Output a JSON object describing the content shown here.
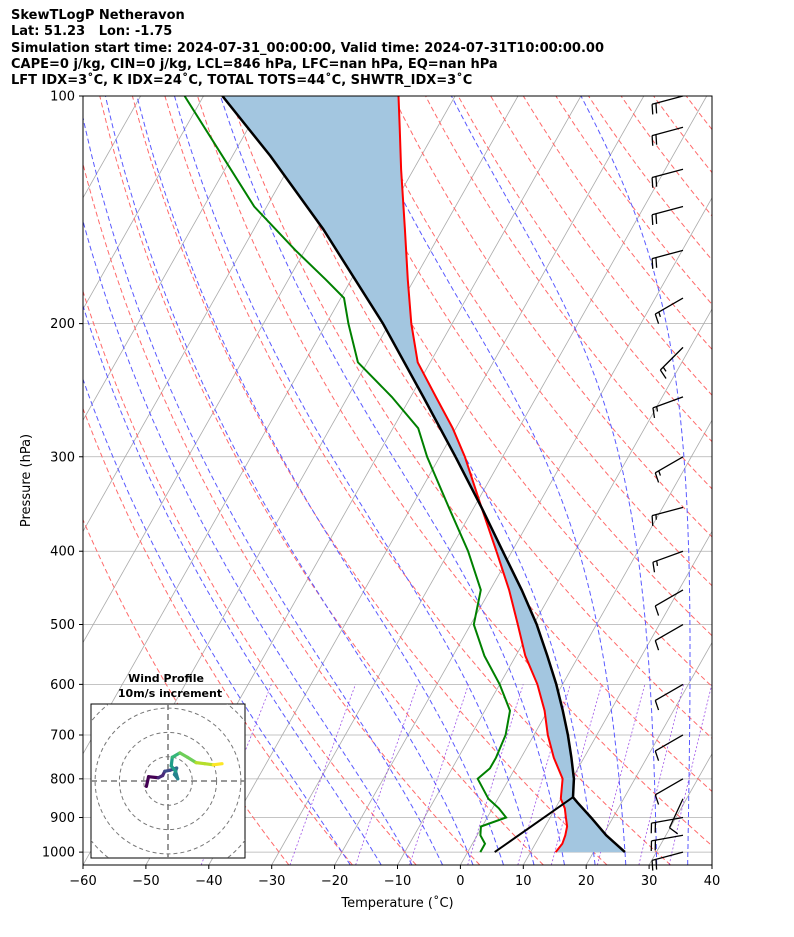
{
  "header": {
    "line1": "SkewTLogP Netheravon",
    "line2": "Lat: 51.23   Lon: -1.75",
    "line3": "Simulation start time: 2024-07-31_00:00:00, Valid time: 2024-07-31T10:00:00.00",
    "line4": "CAPE=0 j/kg, CIN=0 j/kg, LCL=846 hPa, LFC=nan hPa, EQ=nan hPa",
    "line5": "LFT IDX=3˚C, K IDX=24˚C, TOTAL TOTS=44˚C, SHWTR_IDX=3˚C"
  },
  "colors": {
    "temperature": "#ff0000",
    "dewpoint": "#008000",
    "parcel": "#000000",
    "cape_fill": "#a3c6e0",
    "isotherm": "#aaaaaa",
    "dry_adiabat": "#ff6a6a",
    "moist_adiabat": "#5a5aff",
    "mixing_ratio": "#8a2be2"
  },
  "chart_data": {
    "type": "line",
    "subtype": "skew-t log-p",
    "xlabel": "Temperature (˚C)",
    "ylabel": "Pressure (hPa)",
    "xlim": [
      -60,
      40
    ],
    "ylim": [
      1040,
      100
    ],
    "yscale": "log",
    "x_ticks": [
      "−60",
      "−50",
      "−40",
      "−30",
      "−20",
      "−10",
      "0",
      "10",
      "20",
      "30",
      "40"
    ],
    "y_ticks": [
      {
        "p": 100,
        "label": "100"
      },
      {
        "p": 200,
        "label": "200"
      },
      {
        "p": 300,
        "label": "300"
      },
      {
        "p": 400,
        "label": "400"
      },
      {
        "p": 500,
        "label": "500"
      },
      {
        "p": 600,
        "label": "600"
      },
      {
        "p": 700,
        "label": "700"
      },
      {
        "p": 800,
        "label": "800"
      },
      {
        "p": 900,
        "label": "900"
      },
      {
        "p": 1000,
        "label": "1000"
      }
    ],
    "temperature": [
      [
        1000,
        14
      ],
      [
        975,
        14.3
      ],
      [
        950,
        14
      ],
      [
        925,
        13.5
      ],
      [
        900,
        12.5
      ],
      [
        875,
        11.5
      ],
      [
        850,
        10
      ],
      [
        800,
        8.5
      ],
      [
        750,
        5.2
      ],
      [
        700,
        2.2
      ],
      [
        650,
        -0.5
      ],
      [
        600,
        -4
      ],
      [
        550,
        -8.5
      ],
      [
        500,
        -12.5
      ],
      [
        450,
        -17
      ],
      [
        400,
        -22.5
      ],
      [
        350,
        -28.8
      ],
      [
        300,
        -36
      ],
      [
        275,
        -40.5
      ],
      [
        250,
        -46
      ],
      [
        225,
        -52
      ],
      [
        200,
        -56.5
      ],
      [
        175,
        -61
      ],
      [
        150,
        -66
      ],
      [
        125,
        -72
      ],
      [
        110,
        -76
      ],
      [
        100,
        -79
      ]
    ],
    "dewpoint": [
      [
        1000,
        2
      ],
      [
        975,
        2
      ],
      [
        950,
        0.5
      ],
      [
        925,
        -0.2
      ],
      [
        900,
        3
      ],
      [
        875,
        1
      ],
      [
        850,
        -1.5
      ],
      [
        800,
        -5
      ],
      [
        775,
        -4
      ],
      [
        750,
        -4
      ],
      [
        700,
        -4.5
      ],
      [
        650,
        -6
      ],
      [
        600,
        -10
      ],
      [
        550,
        -15
      ],
      [
        500,
        -19.5
      ],
      [
        450,
        -21.5
      ],
      [
        400,
        -27
      ],
      [
        350,
        -34
      ],
      [
        300,
        -42
      ],
      [
        275,
        -46
      ],
      [
        250,
        -53
      ],
      [
        225,
        -61.5
      ],
      [
        200,
        -66.5
      ],
      [
        185,
        -69.5
      ],
      [
        175,
        -74
      ],
      [
        160,
        -81.5
      ],
      [
        140,
        -92
      ],
      [
        100,
        -113
      ]
    ],
    "parcel": [
      [
        1000,
        25
      ],
      [
        950,
        20.5
      ],
      [
        900,
        16.5
      ],
      [
        860,
        13
      ],
      [
        846,
        11.8
      ],
      [
        800,
        10.3
      ],
      [
        750,
        8
      ],
      [
        700,
        5.4
      ],
      [
        650,
        2.4
      ],
      [
        600,
        -1
      ],
      [
        550,
        -5
      ],
      [
        500,
        -9.5
      ],
      [
        450,
        -15
      ],
      [
        400,
        -21.5
      ],
      [
        350,
        -28.8
      ],
      [
        300,
        -37.5
      ],
      [
        250,
        -48
      ],
      [
        200,
        -61
      ],
      [
        150,
        -79
      ],
      [
        120,
        -94
      ],
      [
        100,
        -107
      ]
    ],
    "parcel_surface_segment": [
      [
        1000,
        4.3
      ],
      [
        846,
        11.8
      ]
    ],
    "wind_barbs": [
      {
        "p": 100,
        "dir_deg": 255,
        "speed_kt": 20
      },
      {
        "p": 110,
        "dir_deg": 255,
        "speed_kt": 20
      },
      {
        "p": 125,
        "dir_deg": 255,
        "speed_kt": 20
      },
      {
        "p": 140,
        "dir_deg": 255,
        "speed_kt": 20
      },
      {
        "p": 160,
        "dir_deg": 255,
        "speed_kt": 20
      },
      {
        "p": 185,
        "dir_deg": 240,
        "speed_kt": 15
      },
      {
        "p": 215,
        "dir_deg": 225,
        "speed_kt": 15
      },
      {
        "p": 250,
        "dir_deg": 250,
        "speed_kt": 15
      },
      {
        "p": 300,
        "dir_deg": 240,
        "speed_kt": 15
      },
      {
        "p": 350,
        "dir_deg": 255,
        "speed_kt": 15
      },
      {
        "p": 400,
        "dir_deg": 250,
        "speed_kt": 15
      },
      {
        "p": 450,
        "dir_deg": 240,
        "speed_kt": 10
      },
      {
        "p": 500,
        "dir_deg": 240,
        "speed_kt": 10
      },
      {
        "p": 600,
        "dir_deg": 240,
        "speed_kt": 10
      },
      {
        "p": 700,
        "dir_deg": 240,
        "speed_kt": 10
      },
      {
        "p": 800,
        "dir_deg": 240,
        "speed_kt": 10
      },
      {
        "p": 850,
        "dir_deg": 205,
        "speed_kt": 10
      },
      {
        "p": 900,
        "dir_deg": 260,
        "speed_kt": 20
      },
      {
        "p": 950,
        "dir_deg": 260,
        "speed_kt": 20
      },
      {
        "p": 1000,
        "dir_deg": 255,
        "speed_kt": 20
      }
    ],
    "hodograph": {
      "title": "Wind Profile",
      "subtitle": "10m/s increment",
      "path": [
        [
          -2,
          -0.5
        ],
        [
          -1.8,
          0.4
        ],
        [
          -0.9,
          0.3
        ],
        [
          -0.5,
          0.5
        ],
        [
          -0.3,
          0.9
        ],
        [
          0.2,
          1.0
        ],
        [
          0.8,
          1.2
        ],
        [
          0.6,
          0.6
        ],
        [
          0.9,
          0.2
        ],
        [
          0.7,
          0.9
        ],
        [
          0.3,
          1.4
        ],
        [
          0.4,
          2.2
        ],
        [
          1.1,
          2.6
        ],
        [
          1.8,
          2.2
        ],
        [
          2.6,
          1.7
        ],
        [
          3.4,
          1.6
        ],
        [
          4.2,
          1.5
        ],
        [
          5.0,
          1.6
        ]
      ]
    }
  }
}
